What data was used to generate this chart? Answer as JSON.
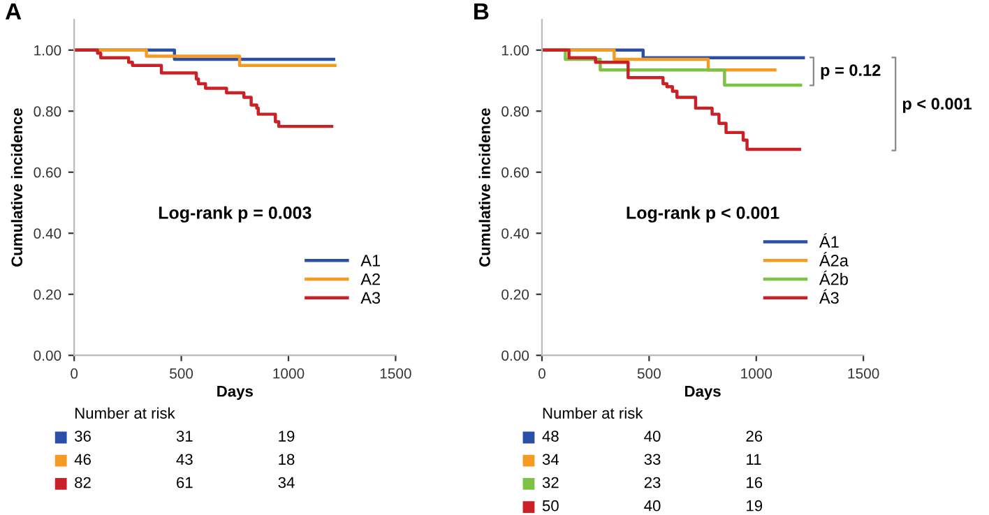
{
  "chart_data": [
    {
      "type": "step",
      "title": "A",
      "xlabel": "Days",
      "ylabel": "Cumulative incidence",
      "xlim": [
        0,
        1500
      ],
      "xticks": [
        0,
        500,
        1000,
        1500
      ],
      "ylim": [
        0,
        1.1
      ],
      "yticks": [
        {
          "value": 0,
          "label": "0.00"
        },
        {
          "value": 0.2,
          "label": "0.20"
        },
        {
          "value": 0.4,
          "label": "0.40"
        },
        {
          "value": 0.6,
          "label": "0.60"
        },
        {
          "value": 0.8,
          "label": "0.80"
        },
        {
          "value": 1.0,
          "label": "1.00"
        }
      ],
      "grid": false,
      "legend": "lower right",
      "marker": "none",
      "line_style": "solid",
      "series": [
        {
          "name": "A1",
          "color": "#2a4fa8",
          "x": [
            0,
            468,
            1211
          ],
          "values": [
            1.0,
            0.97,
            0.97
          ]
        },
        {
          "name": "A2",
          "color": "#f59a23",
          "x": [
            0,
            337,
            772,
            1217
          ],
          "values": [
            1.0,
            0.98,
            0.95,
            0.95
          ]
        },
        {
          "name": "A3",
          "color": "#cc2027",
          "x": [
            0,
            109,
            124,
            254,
            272,
            407,
            570,
            580,
            613,
            711,
            792,
            826,
            852,
            859,
            939,
            955,
            1202
          ],
          "values": [
            1.0,
            0.99,
            0.975,
            0.96,
            0.95,
            0.925,
            0.905,
            0.89,
            0.875,
            0.86,
            0.845,
            0.82,
            0.81,
            0.79,
            0.765,
            0.75,
            0.75
          ]
        }
      ],
      "annotations": [
        "Log-rank p = 0.003",
        "Number at risk",
        "36",
        "31",
        "19",
        "46",
        "43",
        "18",
        "82",
        "61",
        "34"
      ]
    },
    {
      "type": "step",
      "title": "B",
      "xlabel": "Days",
      "ylabel": "Cumulative incidence",
      "xlim": [
        0,
        1500
      ],
      "xticks": [
        0,
        500,
        1000,
        1500
      ],
      "ylim": [
        0,
        1.1
      ],
      "yticks": [
        {
          "value": 0,
          "label": "0.00"
        },
        {
          "value": 0.2,
          "label": "0.20"
        },
        {
          "value": 0.4,
          "label": "0.40"
        },
        {
          "value": 0.6,
          "label": "0.60"
        },
        {
          "value": 0.8,
          "label": "0.80"
        },
        {
          "value": 1.0,
          "label": "1.00"
        }
      ],
      "grid": false,
      "legend": "lower right",
      "marker": "none",
      "line_style": "solid",
      "series": [
        {
          "name": "Á1",
          "color": "#2a4fa8",
          "x": [
            0,
            472,
            1220
          ],
          "values": [
            1.0,
            0.975,
            0.975
          ]
        },
        {
          "name": "Á2a",
          "color": "#f59a23",
          "x": [
            0,
            337,
            776,
            1087
          ],
          "values": [
            1.0,
            0.97,
            0.935,
            0.935
          ]
        },
        {
          "name": "Á2b",
          "color": "#7dc242",
          "x": [
            0,
            109,
            272,
            852,
            1207
          ],
          "values": [
            1.0,
            0.97,
            0.935,
            0.885,
            0.885
          ]
        },
        {
          "name": "Á3",
          "color": "#cc2027",
          "x": [
            0,
            126,
            250,
            402,
            565,
            583,
            609,
            630,
            717,
            794,
            826,
            859,
            939,
            957,
            1202
          ],
          "values": [
            1.0,
            0.975,
            0.96,
            0.91,
            0.89,
            0.88,
            0.865,
            0.845,
            0.81,
            0.79,
            0.76,
            0.73,
            0.705,
            0.675,
            0.675
          ]
        }
      ],
      "annotations": [
        "Log-rank p < 0.001",
        "p = 0.12",
        "p < 0.001",
        "Number at risk",
        "48",
        "40",
        "26",
        "34",
        "33",
        "11",
        "32",
        "23",
        "16",
        "50",
        "40",
        "19"
      ]
    }
  ]
}
